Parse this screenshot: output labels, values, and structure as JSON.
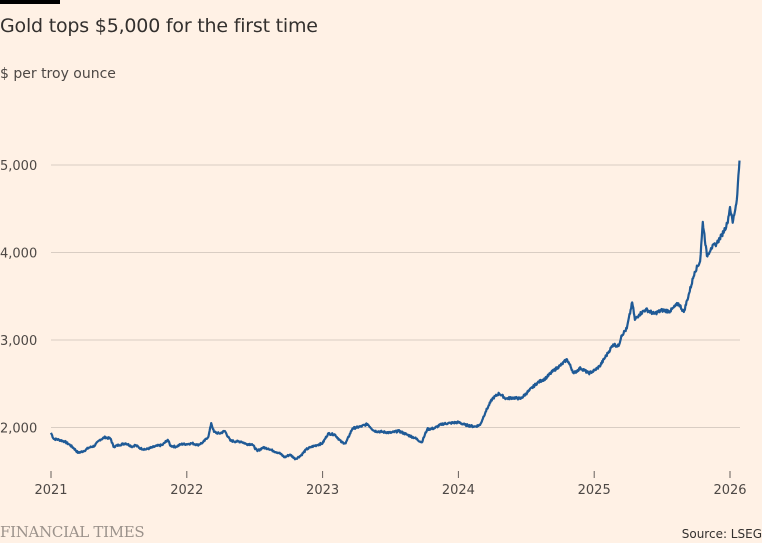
{
  "header": {
    "title": "Gold tops $5,000 for the first time",
    "subtitle": "$ per troy ounce"
  },
  "footer": {
    "brand": "FINANCIAL TIMES",
    "source": "Source: LSEG"
  },
  "colors": {
    "background": "#fff1e5",
    "line": "#1f5a96",
    "grid": "#d9cdc3",
    "text": "#33302e"
  },
  "chart_data": {
    "type": "line",
    "title": "Gold tops $5,000 for the first time",
    "subtitle": "$ per troy ounce",
    "xlabel": "",
    "ylabel": "$ per troy ounce",
    "source": "Source: LSEG",
    "xlim": [
      2021.0,
      2026.08
    ],
    "ylim": [
      1500,
      5050
    ],
    "grid": true,
    "legend": "none",
    "y_ticks": [
      {
        "value": 2000,
        "label": "2,000"
      },
      {
        "value": 3000,
        "label": "3,000"
      },
      {
        "value": 4000,
        "label": "4,000"
      },
      {
        "value": 5000,
        "label": "5,000"
      }
    ],
    "x_ticks": [
      {
        "value": 2021,
        "label": "2021"
      },
      {
        "value": 2022,
        "label": "2022"
      },
      {
        "value": 2023,
        "label": "2023"
      },
      {
        "value": 2024,
        "label": "2024"
      },
      {
        "value": 2025,
        "label": "2025"
      },
      {
        "value": 2026,
        "label": "2026"
      }
    ],
    "series": [
      {
        "name": "Gold price",
        "x": [
          2021.0,
          2021.02,
          2021.06,
          2021.1,
          2021.14,
          2021.17,
          2021.2,
          2021.24,
          2021.28,
          2021.32,
          2021.36,
          2021.4,
          2021.44,
          2021.46,
          2021.5,
          2021.55,
          2021.6,
          2021.62,
          2021.66,
          2021.7,
          2021.74,
          2021.78,
          2021.82,
          2021.86,
          2021.88,
          2021.92,
          2021.96,
          2022.0,
          2022.04,
          2022.08,
          2022.12,
          2022.16,
          2022.18,
          2022.2,
          2022.24,
          2022.28,
          2022.32,
          2022.36,
          2022.4,
          2022.44,
          2022.48,
          2022.52,
          2022.56,
          2022.6,
          2022.64,
          2022.68,
          2022.72,
          2022.76,
          2022.8,
          2022.84,
          2022.88,
          2022.92,
          2022.96,
          2023.0,
          2023.04,
          2023.09,
          2023.14,
          2023.17,
          2023.22,
          2023.28,
          2023.33,
          2023.38,
          2023.44,
          2023.5,
          2023.56,
          2023.62,
          2023.68,
          2023.73,
          2023.77,
          2023.82,
          2023.88,
          2023.94,
          2024.0,
          2024.05,
          2024.12,
          2024.16,
          2024.2,
          2024.25,
          2024.3,
          2024.35,
          2024.4,
          2024.46,
          2024.52,
          2024.58,
          2024.64,
          2024.7,
          2024.76,
          2024.8,
          2024.85,
          2024.9,
          2024.96,
          2025.0,
          2025.04,
          2025.1,
          2025.14,
          2025.18,
          2025.2,
          2025.24,
          2025.28,
          2025.3,
          2025.33,
          2025.38,
          2025.44,
          2025.5,
          2025.56,
          2025.62,
          2025.66,
          2025.7,
          2025.74,
          2025.78,
          2025.8,
          2025.83,
          2025.86,
          2025.9,
          2025.94,
          2025.98,
          2026.0,
          2026.02,
          2026.05,
          2026.07
        ],
        "y": [
          1940,
          1870,
          1860,
          1840,
          1800,
          1760,
          1710,
          1730,
          1770,
          1790,
          1860,
          1890,
          1870,
          1780,
          1800,
          1820,
          1780,
          1800,
          1760,
          1750,
          1770,
          1790,
          1800,
          1860,
          1790,
          1780,
          1810,
          1810,
          1820,
          1800,
          1830,
          1900,
          2050,
          1950,
          1930,
          1960,
          1850,
          1840,
          1840,
          1810,
          1810,
          1730,
          1770,
          1760,
          1730,
          1710,
          1660,
          1690,
          1640,
          1680,
          1750,
          1780,
          1800,
          1820,
          1930,
          1920,
          1830,
          1820,
          1990,
          2010,
          2040,
          1960,
          1950,
          1940,
          1960,
          1920,
          1880,
          1830,
          1980,
          1990,
          2040,
          2050,
          2060,
          2030,
          2010,
          2030,
          2180,
          2330,
          2390,
          2330,
          2340,
          2330,
          2420,
          2510,
          2560,
          2650,
          2720,
          2780,
          2620,
          2680,
          2620,
          2650,
          2700,
          2850,
          2950,
          2930,
          3050,
          3130,
          3430,
          3230,
          3290,
          3350,
          3300,
          3340,
          3330,
          3420,
          3320,
          3540,
          3780,
          3900,
          4350,
          3960,
          4050,
          4100,
          4200,
          4330,
          4520,
          4340,
          4600,
          5050
        ]
      }
    ]
  }
}
